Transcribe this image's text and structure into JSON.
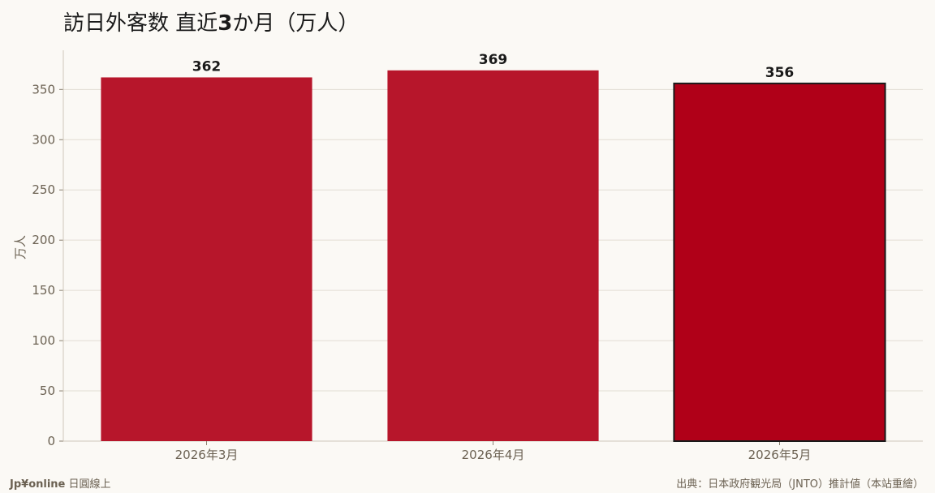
{
  "title": {
    "prefix": "訪日外客数 直近",
    "bold": "3",
    "suffix": "か月（万人）"
  },
  "footer": {
    "brand_bold": "Jp¥online",
    "brand_rest": "日圓線上",
    "source": "出典：日本政府観光局（JNTO）推計値（本站重繪）"
  },
  "colors": {
    "bar": "#b7162b",
    "bar_highlight": "#b00018",
    "highlight_border": "#1a1a1a",
    "axis_text": "#6b6152",
    "grid": "#e2ddd4"
  },
  "chart_data": {
    "type": "bar",
    "categories": [
      "2026年3月",
      "2026年4月",
      "2026年5月"
    ],
    "values": [
      362,
      369,
      356
    ],
    "data_labels": [
      "362",
      "369",
      "356"
    ],
    "highlight_index": 2,
    "ylabel": "万人",
    "xlabel": "",
    "ylim": [
      0,
      389
    ],
    "yticks": [
      0,
      50,
      100,
      150,
      200,
      250,
      300,
      350
    ],
    "grid": true,
    "legend": "none"
  }
}
